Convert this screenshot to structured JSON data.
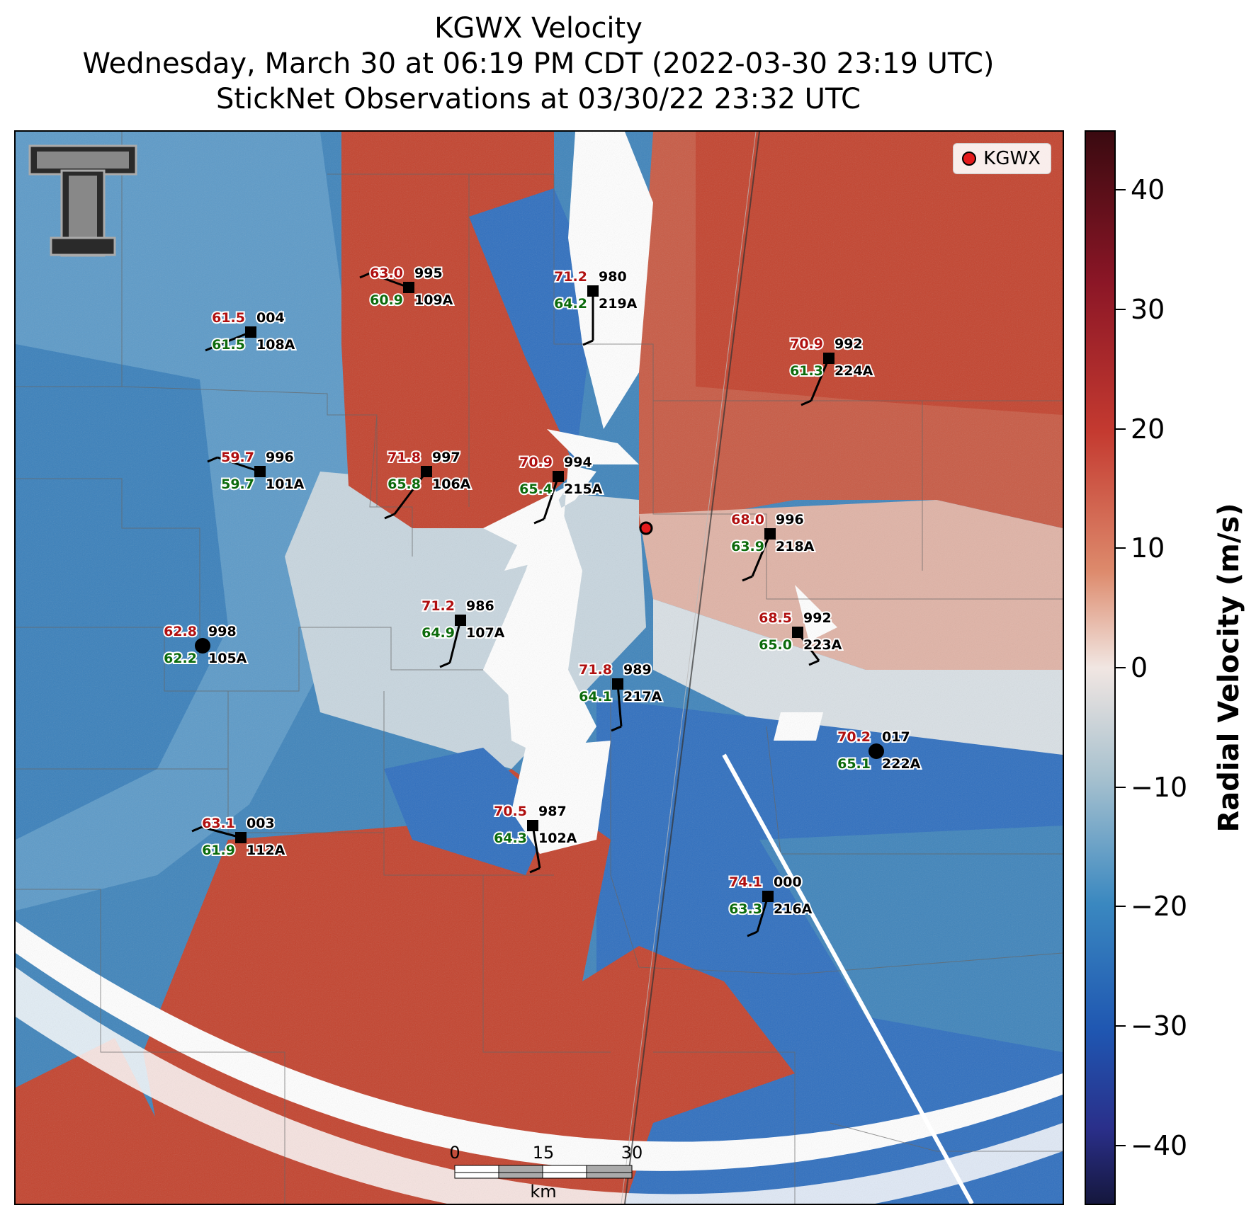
{
  "title": {
    "line1": "KGWX Velocity",
    "line2": "Wednesday, March 30 at 06:19 PM CDT (2022-03-30 23:19 UTC)",
    "line3": "StickNet Observations at 03/30/22 23:32 UTC"
  },
  "legend": {
    "label": "KGWX",
    "marker_color": "#e41a1c"
  },
  "logo": "texas-tech-double-t-logo",
  "scale_bar": {
    "ticks": [
      "0",
      "15",
      "30"
    ],
    "unit": "km"
  },
  "colorbar": {
    "label": "Radial Velocity (m/s)",
    "min": -45,
    "max": 45,
    "ticks": [
      "40",
      "30",
      "20",
      "10",
      "0",
      "−10",
      "−20",
      "−30",
      "−40"
    ],
    "tick_values": [
      40,
      30,
      20,
      10,
      0,
      -10,
      -20,
      -30,
      -40
    ],
    "colors": {
      "max": "#3a0a10",
      "inbound": "#1f56b1",
      "zero": "#f1e6e2",
      "outbound": "#c43a30",
      "min": "#15173d"
    }
  },
  "stations": [
    {
      "id": "109A",
      "temp": "63.0",
      "dew": "60.9",
      "pres": "995"
    },
    {
      "id": "219A",
      "temp": "71.2",
      "dew": "64.2",
      "pres": "980"
    },
    {
      "id": "108A",
      "temp": "61.5",
      "dew": "61.5",
      "pres": "004"
    },
    {
      "id": "224A",
      "temp": "70.9",
      "dew": "61.3",
      "pres": "992"
    },
    {
      "id": "101A",
      "temp": "59.7",
      "dew": "59.7",
      "pres": "996"
    },
    {
      "id": "106A",
      "temp": "71.8",
      "dew": "65.8",
      "pres": "997"
    },
    {
      "id": "215A",
      "temp": "70.9",
      "dew": "65.4",
      "pres": "994"
    },
    {
      "id": "218A",
      "temp": "68.0",
      "dew": "63.9",
      "pres": "996"
    },
    {
      "id": "107A",
      "temp": "71.2",
      "dew": "64.9",
      "pres": "986"
    },
    {
      "id": "105A",
      "temp": "62.8",
      "dew": "62.2",
      "pres": "998"
    },
    {
      "id": "223A",
      "temp": "68.5",
      "dew": "65.0",
      "pres": "992"
    },
    {
      "id": "217A",
      "temp": "71.8",
      "dew": "64.1",
      "pres": "989"
    },
    {
      "id": "222A",
      "temp": "70.2",
      "dew": "65.1",
      "pres": "017"
    },
    {
      "id": "112A",
      "temp": "63.1",
      "dew": "61.9",
      "pres": "003"
    },
    {
      "id": "102A",
      "temp": "70.5",
      "dew": "64.3",
      "pres": "987"
    },
    {
      "id": "216A",
      "temp": "74.1",
      "dew": "63.3",
      "pres": "000"
    }
  ]
}
